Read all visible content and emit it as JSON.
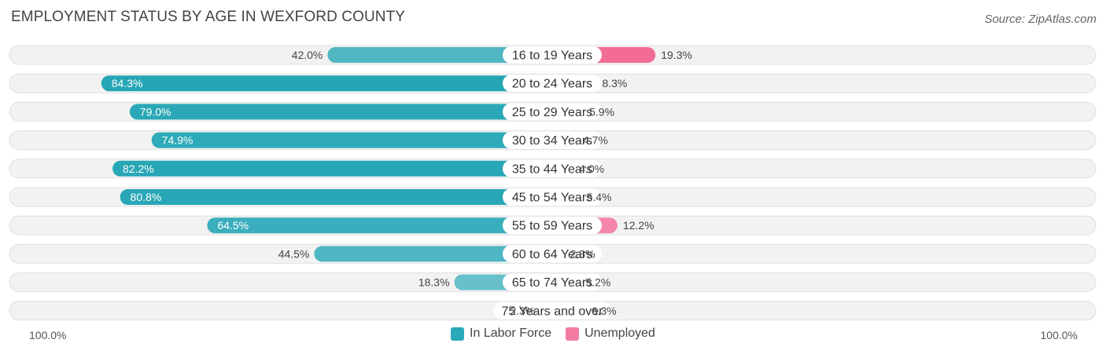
{
  "chart_data": {
    "type": "bar",
    "title": "EMPLOYMENT STATUS BY AGE IN WEXFORD COUNTY",
    "source": "Source: ZipAtlas.com",
    "categories": [
      "16 to 19 Years",
      "20 to 24 Years",
      "25 to 29 Years",
      "30 to 34 Years",
      "35 to 44 Years",
      "45 to 54 Years",
      "55 to 59 Years",
      "60 to 64 Years",
      "65 to 74 Years",
      "75 Years and over"
    ],
    "series": [
      {
        "name": "In Labor Force",
        "values": [
          42.0,
          84.3,
          79.0,
          74.9,
          82.2,
          80.8,
          64.5,
          44.5,
          18.3,
          2.3
        ],
        "labels": [
          "42.0%",
          "84.3%",
          "79.0%",
          "74.9%",
          "82.2%",
          "80.8%",
          "64.5%",
          "44.5%",
          "18.3%",
          "2.3%"
        ]
      },
      {
        "name": "Unemployed",
        "values": [
          19.3,
          8.3,
          5.9,
          4.7,
          4.0,
          5.4,
          12.2,
          2.3,
          5.2,
          6.3
        ],
        "labels": [
          "19.3%",
          "8.3%",
          "5.9%",
          "4.7%",
          "4.0%",
          "5.4%",
          "12.2%",
          "2.3%",
          "5.2%",
          "6.3%"
        ]
      }
    ],
    "axis": {
      "left_label": "100.0%",
      "right_label": "100.0%",
      "left_max": 100,
      "right_max": 100
    },
    "legend": [
      {
        "label": "In Labor Force",
        "color": "#2aa8b8"
      },
      {
        "label": "Unemployed",
        "color": "#f27ba0"
      }
    ]
  }
}
